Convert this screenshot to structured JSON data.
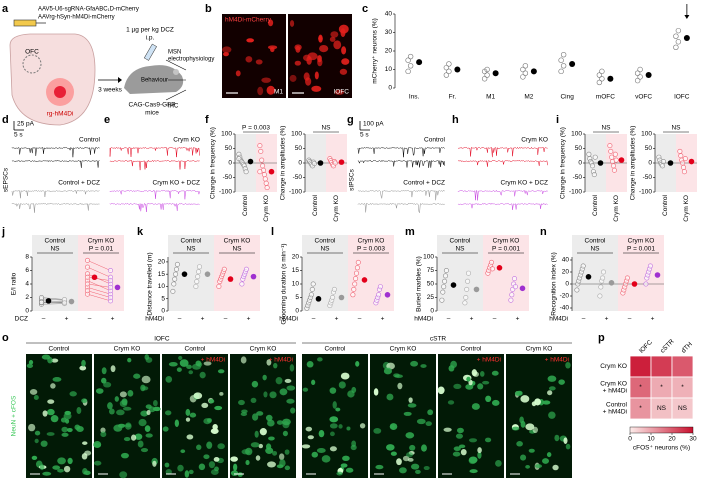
{
  "style": {
    "shading": [
      "#ececec",
      "#fce4e7"
    ]
  },
  "panel_a": {
    "letter": "a",
    "vectors": [
      "AAV5-U6-sgRNA-GfaABC₁D-mCherry",
      "AAVrg-hSyn-hM4Di-mCherry"
    ],
    "region": "OFC",
    "injection": "rg-hM4Di",
    "delay": "3 weeks",
    "dose": "1 µg per kg DCZ",
    "route": "i.p.",
    "mice": [
      "CAG-Cas9-GFP",
      "mice"
    ],
    "readouts": [
      [
        "MSN",
        "electrophysiology"
      ],
      [
        "Behaviour"
      ],
      [
        "IHC"
      ]
    ]
  },
  "panel_b": {
    "letter": "b",
    "stain": "hM4Di-mCherry",
    "regions": [
      "M1",
      "lOFC"
    ]
  },
  "panel_c": {
    "letter": "c",
    "ylabel": "mCherry⁺ neurons (%)",
    "ylim": [
      0,
      40
    ],
    "yticks": [
      0,
      10,
      20,
      30,
      40
    ],
    "categories": [
      "Ins.",
      "Fr.",
      "M1",
      "M2",
      "Cing",
      "mOFC",
      "vOFC",
      "lOFC"
    ],
    "points": [
      [
        9,
        12,
        15,
        17
      ],
      [
        7,
        9,
        11,
        13
      ],
      [
        5,
        7,
        9,
        10
      ],
      [
        6,
        8,
        10,
        12
      ],
      [
        9,
        12,
        15,
        18
      ],
      [
        3,
        5,
        7,
        9
      ],
      [
        4,
        6,
        8,
        10
      ],
      [
        22,
        25,
        28,
        31
      ]
    ],
    "means": [
      14,
      10,
      8,
      9,
      13,
      5,
      7,
      27
    ],
    "point_color": "#777777",
    "mean_color": "#000000"
  },
  "panel_d": {
    "letter": "d",
    "scale_current": "25 pA",
    "scale_time": "5 s",
    "ylabel": "sEPSCs",
    "conditions": [
      "Control",
      "Control + DCZ"
    ],
    "colors": [
      "#000000",
      "#8c8c8c"
    ]
  },
  "panel_e": {
    "letter": "e",
    "conditions": [
      "Crym KO",
      "Crym KO + DCZ"
    ],
    "colors": [
      "#e3001b",
      "#c640e0"
    ]
  },
  "panel_f": {
    "letter": "f",
    "plots": [
      {
        "ylabel": "Change in frequency (%)",
        "ylim": [
          -100,
          100
        ],
        "yticks": [
          -100,
          -50,
          0,
          50,
          100
        ],
        "annotation": "P = 0.003",
        "zero_line": true,
        "groups": [
          {
            "name": "Control",
            "values": [
              30,
              20,
              10,
              5,
              0,
              -5,
              -10,
              -20,
              -30,
              15
            ],
            "mean": 5,
            "color": "#000000",
            "point_color": "#888888"
          },
          {
            "name": "Crym KO",
            "values": [
              60,
              40,
              10,
              -10,
              -25,
              -40,
              -55,
              -70,
              -85,
              -30
            ],
            "mean": -30,
            "color": "#e3001b",
            "point_color": "#f06070"
          }
        ]
      },
      {
        "ylabel": "Change in amplitudes (%)",
        "ylim": [
          -100,
          100
        ],
        "yticks": [
          -100,
          -50,
          0,
          50,
          100
        ],
        "annotation": "NS",
        "zero_line": true,
        "groups": [
          {
            "name": "Control",
            "values": [
              10,
              5,
              0,
              -5,
              -10,
              3,
              -2
            ],
            "mean": 0,
            "color": "#000000",
            "point_color": "#888888"
          },
          {
            "name": "Crym KO",
            "values": [
              15,
              8,
              2,
              -5,
              -10,
              5,
              0
            ],
            "mean": 3,
            "color": "#e3001b",
            "point_color": "#f06070"
          }
        ]
      }
    ]
  },
  "panel_g": {
    "letter": "g",
    "scale_current": "100 pA",
    "scale_time": "5 s",
    "ylabel": "sIPSCs",
    "conditions": [
      "Control",
      "Control + DCZ"
    ],
    "colors": [
      "#000000",
      "#8c8c8c"
    ]
  },
  "panel_h": {
    "letter": "h",
    "conditions": [
      "Crym KO",
      "Crym KO + DCZ"
    ],
    "colors": [
      "#e3001b",
      "#c640e0"
    ]
  },
  "panel_i": {
    "letter": "i",
    "plots": [
      {
        "ylabel": "Change in frequency (%)",
        "ylim": [
          -100,
          100
        ],
        "yticks": [
          -100,
          -50,
          0,
          50,
          100
        ],
        "annotation": "NS",
        "zero_line": true,
        "groups": [
          {
            "name": "Control",
            "values": [
              30,
              15,
              5,
              0,
              -10,
              -30,
              -40,
              20
            ],
            "mean": 0,
            "color": "#000000",
            "point_color": "#888888"
          },
          {
            "name": "Crym KO",
            "values": [
              60,
              40,
              20,
              5,
              -10,
              -25,
              30,
              10
            ],
            "mean": 10,
            "color": "#e3001b",
            "point_color": "#f06070"
          }
        ]
      },
      {
        "ylabel": "Change in amplitudes (%)",
        "ylim": [
          -100,
          100
        ],
        "yticks": [
          -100,
          -50,
          0,
          50,
          100
        ],
        "annotation": "NS",
        "zero_line": true,
        "groups": [
          {
            "name": "Control",
            "values": [
              20,
              10,
              0,
              -5,
              -10,
              5
            ],
            "mean": 0,
            "color": "#000000",
            "point_color": "#888888"
          },
          {
            "name": "Crym KO",
            "values": [
              40,
              25,
              10,
              0,
              -15,
              -30,
              15
            ],
            "mean": 5,
            "color": "#e3001b",
            "point_color": "#f06070"
          }
        ]
      }
    ]
  },
  "panel_j": {
    "letter": "j",
    "ylabel": "E/I ratio",
    "ylim": [
      0,
      8
    ],
    "yticks": [
      0,
      2,
      4,
      6,
      8
    ],
    "group_titles": [
      "Control",
      "Crym KO"
    ],
    "annotations": [
      "NS",
      "P = 0.01"
    ],
    "x_title": "DCZ",
    "x_labels": [
      "–",
      "+",
      "–",
      "+"
    ],
    "paired": true,
    "groups": [
      {
        "values": [
          1.0,
          1.2,
          1.5,
          1.8,
          2.0,
          1.3
        ],
        "mean": 1.5,
        "color": "#000000",
        "point_color": "#888888"
      },
      {
        "values": [
          1.1,
          1.3,
          1.4,
          1.6,
          1.7,
          1.2
        ],
        "mean": 1.4,
        "color": "#9a9a9a",
        "point_color": "#aaaaaa"
      },
      {
        "values": [
          2.5,
          3.5,
          4.5,
          5.5,
          6.5,
          7.5,
          3.0,
          4.0,
          5.0
        ],
        "mean": 5.0,
        "color": "#e3001b",
        "point_color": "#f06070"
      },
      {
        "values": [
          1.5,
          2.5,
          3.0,
          4.0,
          5.0,
          6.0,
          2.0,
          3.5,
          4.5
        ],
        "mean": 3.5,
        "color": "#a030d0",
        "point_color": "#c070e0"
      }
    ]
  },
  "panel_k": {
    "letter": "k",
    "ylabel": "Distance travelled (m)",
    "ylim": [
      0,
      22
    ],
    "yticks": [
      0,
      5,
      10,
      15,
      20
    ],
    "group_titles": [
      "Control",
      "Crym KO"
    ],
    "annotations": [
      "NS",
      "NS"
    ],
    "x_title": "hM4Di",
    "x_labels": [
      "–",
      "+",
      "–",
      "+"
    ],
    "groups": [
      {
        "values": [
          8,
          11,
          13,
          15,
          17,
          19
        ],
        "mean": 15,
        "color": "#000000",
        "point_color": "#888888"
      },
      {
        "values": [
          10,
          12,
          14,
          16,
          18
        ],
        "mean": 15,
        "color": "#9a9a9a",
        "point_color": "#aaaaaa"
      },
      {
        "values": [
          10,
          12,
          13,
          14,
          15,
          16,
          17
        ],
        "mean": 13,
        "color": "#e3001b",
        "point_color": "#f06070"
      },
      {
        "values": [
          11,
          13,
          14,
          15,
          16,
          17
        ],
        "mean": 14,
        "color": "#a030d0",
        "point_color": "#c070e0"
      }
    ]
  },
  "panel_l": {
    "letter": "l",
    "ylabel": "Grooming duration (s min⁻¹)",
    "ylim": [
      0,
      20
    ],
    "yticks": [
      0,
      5,
      10,
      15,
      20
    ],
    "group_titles": [
      "Control",
      "Crym KO"
    ],
    "annotations": [
      "NS",
      "P = 0.003"
    ],
    "x_title": "hM4Di",
    "x_labels": [
      "–",
      "+",
      "–",
      "+"
    ],
    "groups": [
      {
        "values": [
          1,
          2,
          3,
          4,
          5,
          6,
          8,
          10
        ],
        "mean": 4.5,
        "color": "#000000",
        "point_color": "#888888"
      },
      {
        "values": [
          2,
          3,
          4,
          5,
          7,
          8
        ],
        "mean": 5,
        "color": "#9a9a9a",
        "point_color": "#aaaaaa"
      },
      {
        "values": [
          6,
          8,
          10,
          12,
          14,
          16,
          18
        ],
        "mean": 11.5,
        "color": "#e3001b",
        "point_color": "#f06070"
      },
      {
        "values": [
          3,
          4,
          5,
          6,
          8,
          9
        ],
        "mean": 6,
        "color": "#a030d0",
        "point_color": "#c070e0"
      }
    ]
  },
  "panel_m": {
    "letter": "m",
    "ylabel": "Buried marbles (%)",
    "ylim": [
      0,
      100
    ],
    "yticks": [
      0,
      25,
      50,
      75,
      100
    ],
    "group_titles": [
      "Control",
      "Crym KO"
    ],
    "annotations": [
      "NS",
      "P = 0.001"
    ],
    "x_title": "hM4Di",
    "x_labels": [
      "–",
      "+",
      "–",
      "+"
    ],
    "groups": [
      {
        "values": [
          20,
          35,
          45,
          55,
          65,
          75
        ],
        "mean": 48,
        "color": "#000000",
        "point_color": "#888888"
      },
      {
        "values": [
          15,
          25,
          40,
          55,
          70
        ],
        "mean": 40,
        "color": "#9a9a9a",
        "point_color": "#aaaaaa"
      },
      {
        "values": [
          70,
          75,
          80,
          85,
          90,
          78
        ],
        "mean": 80,
        "color": "#e3001b",
        "point_color": "#f06070"
      },
      {
        "values": [
          20,
          30,
          40,
          50,
          60,
          45
        ],
        "mean": 42,
        "color": "#a030d0",
        "point_color": "#c070e0"
      }
    ]
  },
  "panel_n": {
    "letter": "n",
    "ylabel": "Recognition index (%)",
    "ylim": [
      -45,
      45
    ],
    "yticks": [
      -40,
      -20,
      0,
      20,
      40
    ],
    "group_titles": [
      "Control",
      "Crym KO"
    ],
    "annotations": [
      "NS",
      "P = 0.001"
    ],
    "x_title": "hM4Di",
    "x_labels": [
      "–",
      "+",
      "–",
      "+"
    ],
    "zero_line": true,
    "groups": [
      {
        "values": [
          -10,
          0,
          5,
          10,
          15,
          20,
          25,
          30
        ],
        "mean": 12,
        "color": "#000000",
        "point_color": "#888888"
      },
      {
        "values": [
          -20,
          -5,
          5,
          10,
          20
        ],
        "mean": 2,
        "color": "#9a9a9a",
        "point_color": "#aaaaaa"
      },
      {
        "values": [
          -15,
          -10,
          -5,
          0,
          5,
          10
        ],
        "mean": 0,
        "color": "#e3001b",
        "point_color": "#f06070"
      },
      {
        "values": [
          0,
          10,
          15,
          20,
          25,
          30
        ],
        "mean": 15,
        "color": "#a030d0",
        "point_color": "#c070e0"
      }
    ]
  },
  "panel_o": {
    "letter": "o",
    "stain": "NeuN + cFOS",
    "regions": [
      "lOFC",
      "cSTR"
    ],
    "columns": [
      {
        "title": "Control"
      },
      {
        "title": "Crym KO"
      },
      {
        "title": "Control",
        "sub": "+ hM4Di"
      },
      {
        "title": "Crym KO",
        "sub": "+ hM4Di"
      }
    ]
  },
  "panel_p": {
    "letter": "p",
    "columns": [
      "lOFC",
      "cSTR",
      "dTH"
    ],
    "rows": [
      [
        "Crym KO"
      ],
      [
        "Crym KO",
        "+ hM4Di"
      ],
      [
        "Control",
        "+ hM4Di"
      ]
    ],
    "values": [
      [
        28,
        24,
        20
      ],
      [
        18,
        9,
        8
      ],
      [
        12,
        6,
        5
      ]
    ],
    "cell_labels": [
      [
        null,
        null,
        null
      ],
      [
        "*",
        "*",
        "*"
      ],
      [
        "*",
        "NS",
        "NS"
      ]
    ],
    "clim": [
      0,
      30
    ],
    "cticks": [
      0,
      10,
      20,
      30
    ],
    "clabel": "cFOS⁺ neurons (%)",
    "colors": [
      "#fdecea",
      "#c8102e"
    ]
  }
}
